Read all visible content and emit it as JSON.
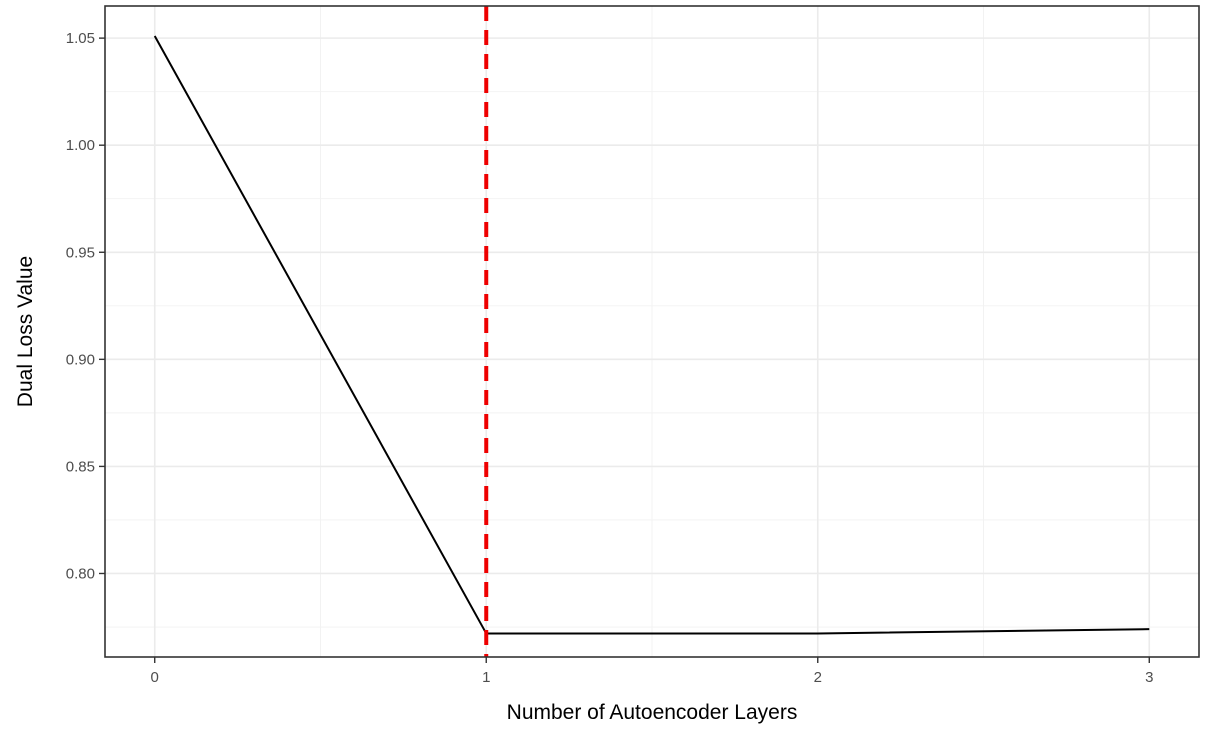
{
  "chart_data": {
    "type": "line",
    "xlabel": "Number of Autoencoder Layers",
    "ylabel": "Dual Loss Value",
    "x": [
      0,
      1,
      2,
      3
    ],
    "series": [
      {
        "values": [
          1.051,
          0.772,
          0.772,
          0.774
        ],
        "color": "#000000"
      }
    ],
    "xlim": [
      -0.15,
      3.15
    ],
    "ylim": [
      0.761,
      1.065
    ],
    "xticks": [
      0,
      1,
      2,
      3
    ],
    "xtick_labels": [
      "0",
      "1",
      "2",
      "3"
    ],
    "yticks": [
      0.8,
      0.85,
      0.9,
      0.95,
      1.0,
      1.05
    ],
    "ytick_labels": [
      "0.80",
      "0.85",
      "0.90",
      "0.95",
      "1.00",
      "1.05"
    ],
    "reference_line": {
      "orientation": "vertical",
      "x": 1,
      "style": "dashed",
      "color": "#ee0000"
    },
    "grid": true,
    "legend": "none"
  }
}
